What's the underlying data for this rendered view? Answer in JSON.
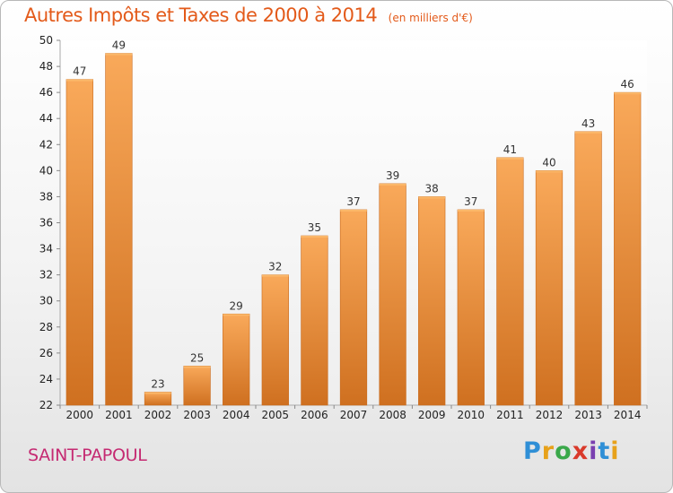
{
  "header": {
    "title": "Autres Impôts et Taxes de 2000 à 2014",
    "subtitle": "(en milliers d'€)"
  },
  "footer": {
    "town": "SAINT-PAPOUL",
    "logo_letters": [
      "P",
      "r",
      "o",
      "x",
      "i",
      "t",
      "i"
    ]
  },
  "colors": {
    "title": "#e35a1a",
    "town": "#c52a72",
    "bar_light": "#f9a95a",
    "bar_dark": "#d0741f"
  },
  "chart_data": {
    "type": "bar",
    "title": "Autres Impôts et Taxes de 2000 à 2014",
    "subtitle": "(en milliers d'€)",
    "categories": [
      "2000",
      "2001",
      "2002",
      "2003",
      "2004",
      "2005",
      "2006",
      "2007",
      "2008",
      "2009",
      "2010",
      "2011",
      "2012",
      "2013",
      "2014"
    ],
    "values": [
      47,
      49,
      23,
      25,
      29,
      32,
      35,
      37,
      39,
      38,
      37,
      41,
      40,
      43,
      46
    ],
    "ylim": [
      22,
      50
    ],
    "yticks": [
      22,
      24,
      26,
      28,
      30,
      32,
      34,
      36,
      38,
      40,
      42,
      44,
      46,
      48,
      50
    ],
    "xlabel": "",
    "ylabel": "",
    "grid": false,
    "data_labels": true
  }
}
